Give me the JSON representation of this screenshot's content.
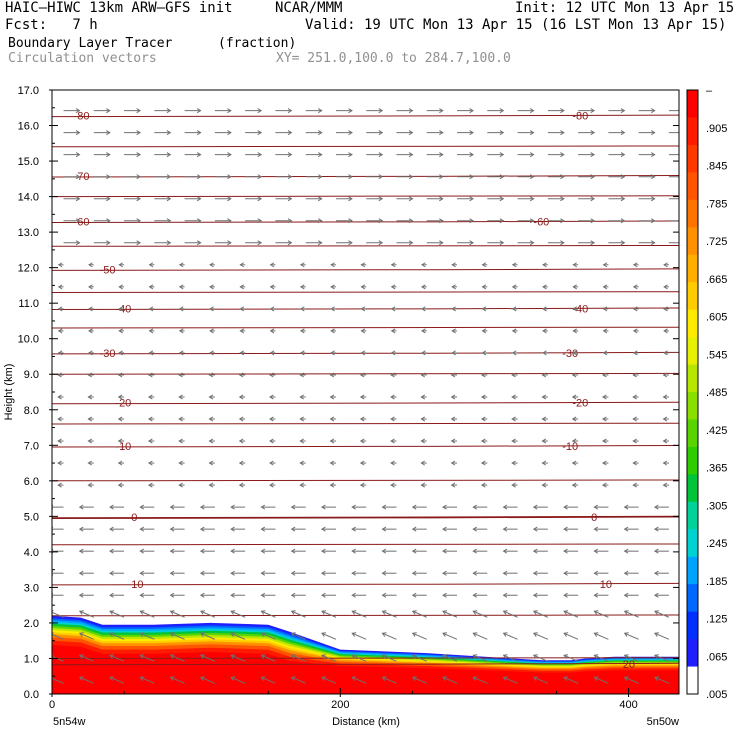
{
  "header": {
    "model": "HAIC–HIWC 13km ARW–GFS init",
    "org": "NCAR/MMM",
    "init": "Init: 12 UTC Mon 13 Apr 15",
    "fcst": "Fcst:   7 h",
    "valid": "Valid: 19 UTC Mon 13 Apr 15 (16 LST Mon 13 Apr 15)",
    "field": "Boundary Layer Tracer",
    "units": "(fraction)",
    "vectors": "Circulation vectors",
    "xsect": "XY= 251.0,100.0 to 284.7,100.0"
  },
  "chart_data": {
    "type": "heatmap",
    "ylabel": "Height (km)",
    "xlabel": "Distance (km)",
    "xlim": [
      0,
      435
    ],
    "ylim": [
      0,
      17
    ],
    "y_ticks": [
      "17.0",
      "16.0",
      "15.0",
      "14.0",
      "13.0",
      "12.0",
      "11.0",
      "10.0",
      "9.0",
      "8.0",
      "7.0",
      "6.0",
      "5.0",
      "4.0",
      "3.0",
      "2.0",
      "1.0",
      "0.0"
    ],
    "x_ticks": [
      {
        "value": 0,
        "label": "0"
      },
      {
        "value": 200,
        "label": "200"
      },
      {
        "value": 400,
        "label": "400"
      }
    ],
    "x_end_labels": {
      "left": "5n54w",
      "right": "5n50w"
    },
    "colorbar_labels": [
      "–",
      ".905",
      ".845",
      ".785",
      ".725",
      ".665",
      ".605",
      ".545",
      ".485",
      ".425",
      ".365",
      ".305",
      ".245",
      ".185",
      ".125",
      ".065",
      ".005"
    ],
    "colorbar_colors": [
      "#ff0000",
      "#ff1a00",
      "#ff3800",
      "#ff5500",
      "#ff7300",
      "#ff9000",
      "#ffae00",
      "#ffcc00",
      "#ffea00",
      "#e6f000",
      "#b9e600",
      "#8ade00",
      "#5ad400",
      "#2ecc00",
      "#00c43a",
      "#00d29a",
      "#00d2d2",
      "#00a4ff",
      "#0068ff",
      "#0030ff",
      "#1e1eff",
      "#ffffff"
    ],
    "temperature_contours": [
      {
        "label": "-80",
        "height": 16.28,
        "lab_left_x": 15,
        "lab_right_x": 361
      },
      {
        "label": "-70",
        "height": 14.58,
        "lab_left_x": 15,
        "lab_right_x": null
      },
      {
        "label": "-60",
        "height": 13.3,
        "lab_left_x": 15,
        "lab_right_x": 334
      },
      {
        "label": "-50",
        "height": 11.95,
        "lab_left_x": 33,
        "lab_right_x": null
      },
      {
        "label": "-40",
        "height": 10.85,
        "lab_left_x": 44,
        "lab_right_x": 361
      },
      {
        "label": "-30",
        "height": 9.6,
        "lab_left_x": 33,
        "lab_right_x": 354
      },
      {
        "label": "-20",
        "height": 8.2,
        "lab_left_x": 44,
        "lab_right_x": 361
      },
      {
        "label": "-10",
        "height": 6.98,
        "lab_left_x": 44,
        "lab_right_x": 354
      },
      {
        "label": "0",
        "height": 4.98,
        "lab_left_x": 55,
        "lab_right_x": 374
      },
      {
        "label": "10",
        "height": 3.1,
        "lab_left_x": 55,
        "lab_right_x": 380
      },
      {
        "label": "20",
        "height": 0.85,
        "lab_left_x": null,
        "lab_right_x": 396
      }
    ]
  }
}
